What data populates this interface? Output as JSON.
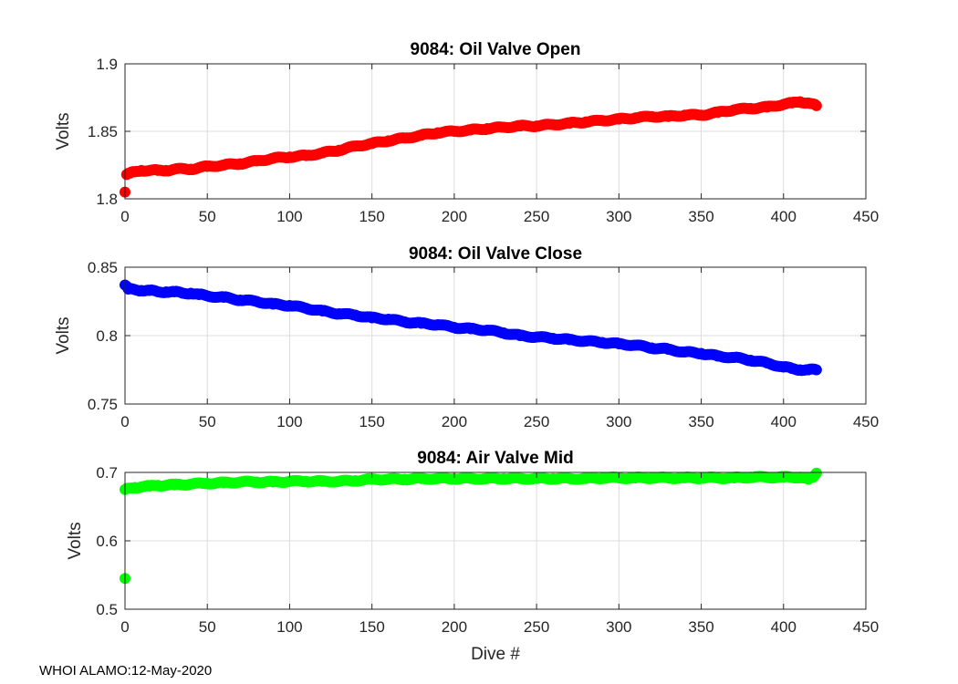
{
  "footer": "WHOI ALAMO:12-May-2020",
  "chart_data": [
    {
      "type": "scatter",
      "title": "9084: Oil Valve Open",
      "xlabel": "",
      "ylabel": "Volts",
      "xlim": [
        0,
        450
      ],
      "ylim": [
        1.8,
        1.9
      ],
      "xticks": [
        0,
        50,
        100,
        150,
        200,
        250,
        300,
        350,
        400,
        450
      ],
      "yticks": [
        1.8,
        1.85,
        1.9
      ],
      "ytick_labels": [
        "1.8",
        "1.85",
        "1.9"
      ],
      "grid": true,
      "color": "#ff0000",
      "series": [
        {
          "name": "Oil Valve Open",
          "x": [
            0,
            1,
            3,
            6,
            10,
            15,
            20,
            25,
            30,
            40,
            50,
            60,
            70,
            80,
            90,
            100,
            110,
            120,
            130,
            140,
            150,
            160,
            170,
            180,
            190,
            200,
            210,
            220,
            230,
            240,
            250,
            260,
            270,
            280,
            290,
            300,
            310,
            320,
            330,
            340,
            350,
            360,
            370,
            380,
            390,
            400,
            405,
            410,
            415,
            420
          ],
          "y": [
            1.805,
            1.818,
            1.819,
            1.82,
            1.821,
            1.821,
            1.821,
            1.821,
            1.822,
            1.822,
            1.824,
            1.825,
            1.826,
            1.828,
            1.83,
            1.831,
            1.832,
            1.834,
            1.836,
            1.839,
            1.841,
            1.843,
            1.845,
            1.847,
            1.849,
            1.85,
            1.851,
            1.852,
            1.853,
            1.854,
            1.854,
            1.855,
            1.856,
            1.857,
            1.858,
            1.859,
            1.86,
            1.861,
            1.861,
            1.862,
            1.862,
            1.864,
            1.866,
            1.867,
            1.868,
            1.87,
            1.871,
            1.872,
            1.871,
            1.869
          ]
        }
      ]
    },
    {
      "type": "scatter",
      "title": "9084: Oil Valve Close",
      "xlabel": "",
      "ylabel": "Volts",
      "xlim": [
        0,
        450
      ],
      "ylim": [
        0.75,
        0.85
      ],
      "xticks": [
        0,
        50,
        100,
        150,
        200,
        250,
        300,
        350,
        400,
        450
      ],
      "yticks": [
        0.75,
        0.8,
        0.85
      ],
      "ytick_labels": [
        "0.75",
        "0.8",
        "0.85"
      ],
      "grid": true,
      "color": "#0000ff",
      "series": [
        {
          "name": "Oil Valve Close",
          "x": [
            0,
            2,
            5,
            10,
            15,
            20,
            25,
            30,
            35,
            40,
            45,
            50,
            60,
            70,
            80,
            90,
            100,
            110,
            120,
            130,
            140,
            150,
            160,
            170,
            180,
            190,
            200,
            210,
            220,
            230,
            240,
            250,
            260,
            270,
            280,
            290,
            300,
            310,
            320,
            330,
            340,
            350,
            360,
            370,
            380,
            390,
            400,
            405,
            410,
            415,
            420
          ],
          "y": [
            0.837,
            0.834,
            0.834,
            0.833,
            0.833,
            0.832,
            0.832,
            0.832,
            0.831,
            0.831,
            0.83,
            0.829,
            0.828,
            0.826,
            0.825,
            0.823,
            0.822,
            0.82,
            0.818,
            0.816,
            0.815,
            0.813,
            0.812,
            0.81,
            0.809,
            0.808,
            0.806,
            0.805,
            0.804,
            0.802,
            0.8,
            0.799,
            0.798,
            0.797,
            0.796,
            0.795,
            0.794,
            0.793,
            0.791,
            0.79,
            0.788,
            0.787,
            0.785,
            0.784,
            0.782,
            0.78,
            0.777,
            0.776,
            0.775,
            0.775,
            0.775
          ]
        }
      ]
    },
    {
      "type": "scatter",
      "title": "9084: Air Valve Mid",
      "xlabel": "Dive #",
      "ylabel": "Volts",
      "xlim": [
        0,
        450
      ],
      "ylim": [
        0.5,
        0.7
      ],
      "xticks": [
        0,
        50,
        100,
        150,
        200,
        250,
        300,
        350,
        400,
        450
      ],
      "yticks": [
        0.5,
        0.6,
        0.7
      ],
      "ytick_labels": [
        "0.5",
        "0.6",
        "0.7"
      ],
      "grid": true,
      "color": "#00ff00",
      "series": [
        {
          "name": "Air Valve Mid",
          "x": [
            0,
            0,
            3,
            6,
            10,
            15,
            20,
            30,
            40,
            50,
            60,
            70,
            80,
            90,
            100,
            110,
            120,
            130,
            140,
            150,
            160,
            170,
            180,
            190,
            200,
            210,
            220,
            230,
            240,
            250,
            260,
            270,
            280,
            290,
            300,
            310,
            320,
            330,
            340,
            350,
            360,
            370,
            380,
            390,
            400,
            410,
            415,
            418,
            420
          ],
          "y": [
            0.545,
            0.675,
            0.677,
            0.678,
            0.679,
            0.68,
            0.681,
            0.682,
            0.683,
            0.684,
            0.685,
            0.686,
            0.686,
            0.686,
            0.687,
            0.687,
            0.687,
            0.687,
            0.688,
            0.69,
            0.69,
            0.69,
            0.691,
            0.691,
            0.691,
            0.691,
            0.691,
            0.691,
            0.691,
            0.691,
            0.691,
            0.691,
            0.691,
            0.692,
            0.692,
            0.692,
            0.692,
            0.692,
            0.692,
            0.692,
            0.692,
            0.692,
            0.693,
            0.693,
            0.693,
            0.693,
            0.69,
            0.693,
            0.699
          ]
        }
      ]
    }
  ]
}
